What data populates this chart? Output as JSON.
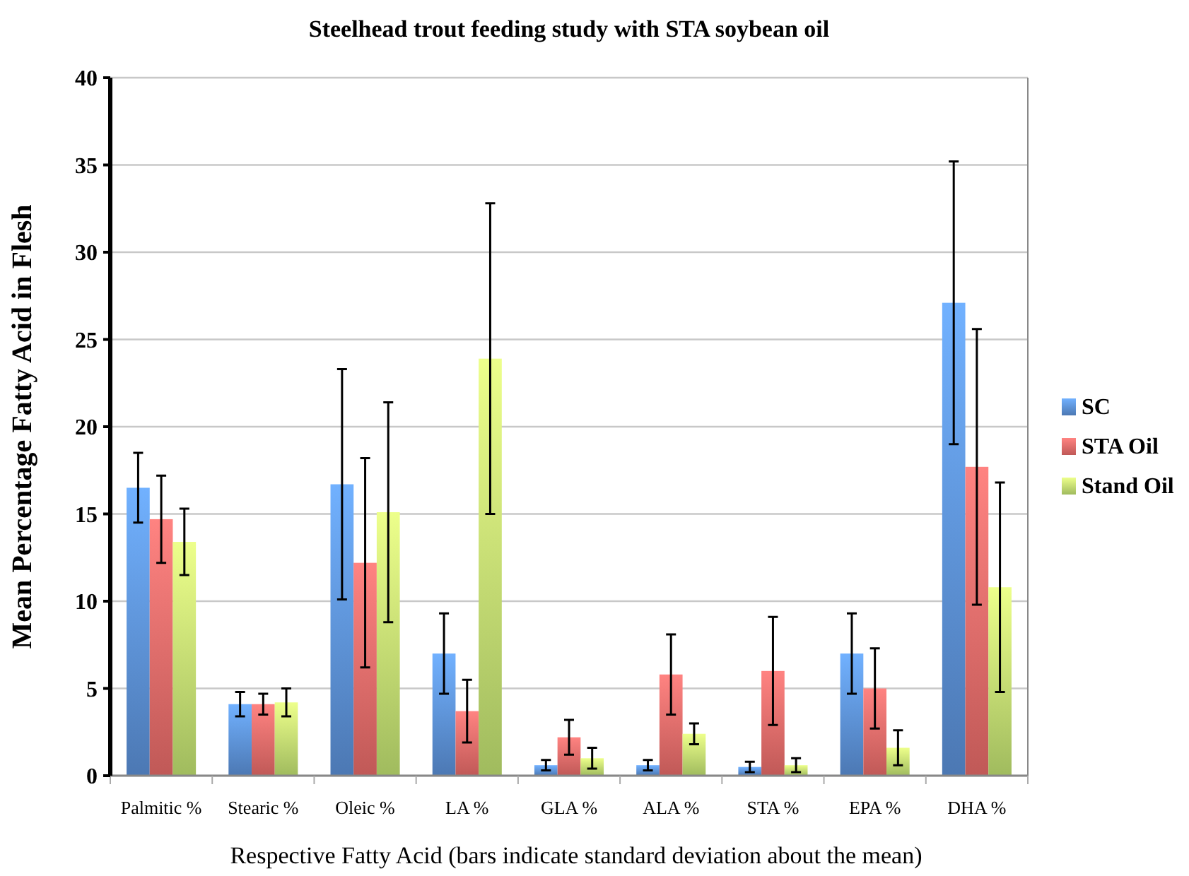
{
  "chart_data": {
    "type": "bar",
    "title": "Steelhead trout feeding study with STA soybean oil",
    "xlabel": "Respective Fatty Acid (bars indicate standard deviation about the mean)",
    "ylabel": "Mean Percentage Fatty Acid in Flesh",
    "categories": [
      "Palmitic %",
      "Stearic %",
      "Oleic %",
      "LA %",
      "GLA %",
      "ALA %",
      "STA %",
      "EPA %",
      "DHA %"
    ],
    "series": [
      {
        "name": "SC",
        "color": "#5b8fd6",
        "values": [
          16.5,
          4.1,
          16.7,
          7.0,
          0.6,
          0.6,
          0.5,
          7.0,
          27.1
        ],
        "errors": [
          2.0,
          0.7,
          6.6,
          2.3,
          0.3,
          0.3,
          0.3,
          2.3,
          8.1
        ]
      },
      {
        "name": "STA Oil",
        "color": "#e66a68",
        "values": [
          14.7,
          4.1,
          12.2,
          3.7,
          2.2,
          5.8,
          6.0,
          5.0,
          17.7
        ],
        "errors": [
          2.5,
          0.6,
          6.0,
          1.8,
          1.0,
          2.3,
          3.1,
          2.3,
          7.9
        ]
      },
      {
        "name": "Stand Oil",
        "color": "#bfe070",
        "values": [
          13.4,
          4.2,
          15.1,
          23.9,
          1.0,
          2.4,
          0.6,
          1.6,
          10.8
        ],
        "errors": [
          1.9,
          0.8,
          6.3,
          8.9,
          0.6,
          0.6,
          0.4,
          1.0,
          6.0
        ]
      }
    ],
    "ylim": [
      0,
      40
    ],
    "yticks": [
      0,
      5,
      10,
      15,
      20,
      25,
      30,
      35,
      40
    ],
    "grid": "y",
    "legend": "right"
  }
}
